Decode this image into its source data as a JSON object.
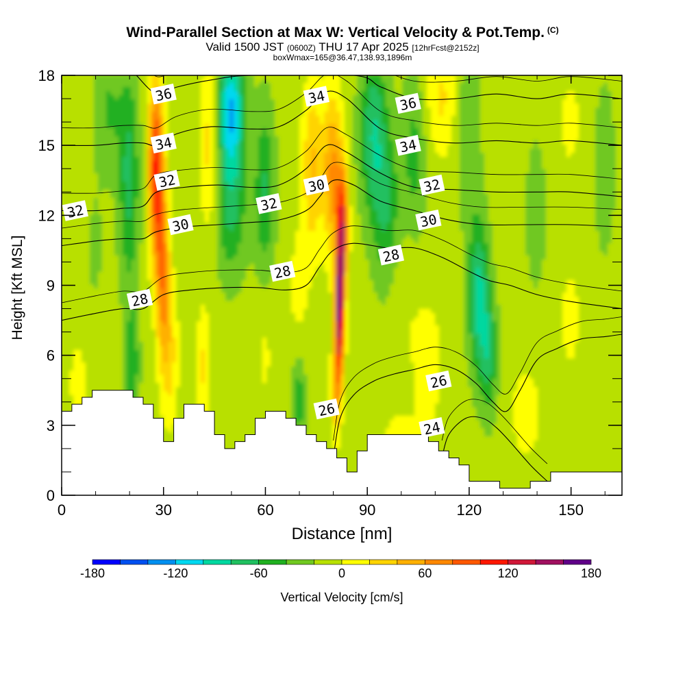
{
  "header": {
    "title": "Wind-Parallel Section at Max W: Vertical Velocity & Pot.Temp.",
    "title_mark": "(C)",
    "valid_a": "Valid 1500 JST",
    "valid_b": "(0600Z)",
    "valid_c": "THU 17 Apr 2025",
    "valid_d": "[12hrFcst@2152z]",
    "box": "boxWmax=165@36.47,138.93,1896m"
  },
  "chart_data": {
    "type": "heatmap",
    "xlabel": "Distance [nm]",
    "ylabel": "Height [Kft MSL]",
    "xlim": [
      0,
      165
    ],
    "ylim": [
      0,
      18
    ],
    "x_ticks": [
      0,
      30,
      60,
      90,
      120,
      150
    ],
    "y_ticks": [
      0,
      3,
      6,
      9,
      12,
      15,
      18
    ],
    "colorbar": {
      "label": "Vertical Velocity [cm/s]",
      "tick_values": [
        -180,
        -120,
        -60,
        0,
        60,
        120,
        180
      ],
      "min": -180,
      "max": 180,
      "step": 20,
      "colors": [
        "#0000ff",
        "#0050f0",
        "#0090f0",
        "#00d8f0",
        "#00d8a0",
        "#20c060",
        "#20b020",
        "#70c820",
        "#b8e000",
        "#ffff00",
        "#ffd400",
        "#ffb000",
        "#ff8800",
        "#ff5800",
        "#ff1800",
        "#d01838",
        "#a01060",
        "#600088"
      ]
    },
    "terrain_kft": [
      [
        0,
        3.6
      ],
      [
        3,
        3.6
      ],
      [
        3,
        3.9
      ],
      [
        6,
        3.9
      ],
      [
        6,
        4.2
      ],
      [
        9,
        4.2
      ],
      [
        9,
        4.5
      ],
      [
        21,
        4.5
      ],
      [
        21,
        4.2
      ],
      [
        24,
        4.2
      ],
      [
        24,
        3.9
      ],
      [
        27,
        3.9
      ],
      [
        27,
        3.3
      ],
      [
        30,
        3.3
      ],
      [
        30,
        2.3
      ],
      [
        33,
        2.3
      ],
      [
        33,
        3.3
      ],
      [
        36,
        3.3
      ],
      [
        36,
        3.9
      ],
      [
        42,
        3.9
      ],
      [
        42,
        3.6
      ],
      [
        45,
        3.6
      ],
      [
        45,
        2.6
      ],
      [
        48,
        2.6
      ],
      [
        48,
        2.0
      ],
      [
        51,
        2.0
      ],
      [
        51,
        2.3
      ],
      [
        54,
        2.3
      ],
      [
        54,
        2.6
      ],
      [
        57,
        2.6
      ],
      [
        57,
        3.3
      ],
      [
        60,
        3.3
      ],
      [
        60,
        3.6
      ],
      [
        66,
        3.6
      ],
      [
        66,
        3.3
      ],
      [
        69,
        3.3
      ],
      [
        69,
        3.0
      ],
      [
        72,
        3.0
      ],
      [
        72,
        2.6
      ],
      [
        75,
        2.6
      ],
      [
        75,
        2.3
      ],
      [
        78,
        2.3
      ],
      [
        78,
        2.0
      ],
      [
        81,
        2.0
      ],
      [
        81,
        1.6
      ],
      [
        84,
        1.6
      ],
      [
        84,
        1.0
      ],
      [
        87,
        1.0
      ],
      [
        87,
        1.9
      ],
      [
        90,
        1.9
      ],
      [
        90,
        2.6
      ],
      [
        108,
        2.6
      ],
      [
        108,
        2.3
      ],
      [
        111,
        2.3
      ],
      [
        111,
        1.9
      ],
      [
        114,
        1.9
      ],
      [
        114,
        1.6
      ],
      [
        117,
        1.6
      ],
      [
        117,
        1.3
      ],
      [
        120,
        1.3
      ],
      [
        120,
        0.6
      ],
      [
        129,
        0.6
      ],
      [
        129,
        0.3
      ],
      [
        138,
        0.3
      ],
      [
        138,
        0.6
      ],
      [
        144,
        0.6
      ],
      [
        144,
        1.0
      ],
      [
        165,
        1.0
      ]
    ],
    "theta_contours": [
      {
        "label": "24",
        "points": [
          [
            112,
            1.6
          ],
          [
            114,
            2.6
          ],
          [
            119,
            3.3
          ],
          [
            124,
            3.3
          ],
          [
            128,
            2.9
          ],
          [
            132,
            2.3
          ],
          [
            138,
            1.3
          ],
          [
            143,
            0.6
          ]
        ]
      },
      {
        "label": "26",
        "points": [
          [
            80,
            1.6
          ],
          [
            82,
            3.3
          ],
          [
            86,
            4.3
          ],
          [
            92,
            4.9
          ],
          [
            98,
            5.2
          ],
          [
            104,
            5.4
          ],
          [
            110,
            5.6
          ],
          [
            116,
            5.4
          ],
          [
            122,
            4.8
          ],
          [
            127,
            4.0
          ],
          [
            131,
            3.6
          ],
          [
            135,
            4.5
          ],
          [
            140,
            5.8
          ],
          [
            146,
            6.3
          ],
          [
            153,
            6.7
          ],
          [
            160,
            6.8
          ],
          [
            165,
            6.9
          ]
        ]
      },
      {
        "label": "28",
        "points": [
          [
            0,
            7.5
          ],
          [
            10,
            7.8
          ],
          [
            18,
            8.0
          ],
          [
            24,
            8.0
          ],
          [
            30,
            8.6
          ],
          [
            38,
            8.8
          ],
          [
            48,
            8.9
          ],
          [
            58,
            8.9
          ],
          [
            66,
            8.8
          ],
          [
            72,
            9.0
          ],
          [
            76,
            9.8
          ],
          [
            80,
            10.5
          ],
          [
            86,
            10.8
          ],
          [
            96,
            10.6
          ],
          [
            104,
            10.6
          ],
          [
            112,
            10.2
          ],
          [
            120,
            9.6
          ],
          [
            126,
            9.2
          ],
          [
            132,
            9.0
          ],
          [
            140,
            8.6
          ],
          [
            150,
            8.3
          ],
          [
            165,
            8.0
          ]
        ]
      },
      {
        "label": "30",
        "points": [
          [
            0,
            10.7
          ],
          [
            10,
            10.9
          ],
          [
            18,
            11.0
          ],
          [
            24,
            11.0
          ],
          [
            28,
            11.3
          ],
          [
            36,
            11.5
          ],
          [
            46,
            11.6
          ],
          [
            56,
            11.7
          ],
          [
            64,
            11.8
          ],
          [
            72,
            12.2
          ],
          [
            76,
            12.8
          ],
          [
            80,
            13.5
          ],
          [
            86,
            13.3
          ],
          [
            94,
            12.6
          ],
          [
            104,
            12.2
          ],
          [
            114,
            11.8
          ],
          [
            124,
            11.6
          ],
          [
            136,
            11.6
          ],
          [
            150,
            11.6
          ],
          [
            165,
            11.5
          ]
        ]
      },
      {
        "label": "32",
        "points": [
          [
            0,
            12.2
          ],
          [
            10,
            12.2
          ],
          [
            18,
            12.3
          ],
          [
            24,
            12.4
          ],
          [
            28,
            13.0
          ],
          [
            36,
            13.2
          ],
          [
            46,
            13.3
          ],
          [
            56,
            13.2
          ],
          [
            64,
            13.3
          ],
          [
            72,
            14.0
          ],
          [
            78,
            15.0
          ],
          [
            84,
            14.7
          ],
          [
            94,
            13.8
          ],
          [
            104,
            13.2
          ],
          [
            116,
            13.1
          ],
          [
            128,
            13.0
          ],
          [
            140,
            13.0
          ],
          [
            150,
            13.0
          ],
          [
            165,
            12.8
          ]
        ]
      },
      {
        "label": "34",
        "points": [
          [
            0,
            15.0
          ],
          [
            10,
            15.0
          ],
          [
            18,
            15.1
          ],
          [
            24,
            15.1
          ],
          [
            28,
            15.0
          ],
          [
            34,
            15.5
          ],
          [
            44,
            15.8
          ],
          [
            56,
            15.7
          ],
          [
            64,
            15.8
          ],
          [
            72,
            16.5
          ],
          [
            78,
            17.3
          ],
          [
            84,
            17.0
          ],
          [
            94,
            15.7
          ],
          [
            104,
            15.3
          ],
          [
            116,
            15.1
          ],
          [
            128,
            15.2
          ],
          [
            140,
            15.1
          ],
          [
            150,
            15.2
          ],
          [
            165,
            15.0
          ]
        ]
      },
      {
        "label": "36",
        "points": [
          [
            22,
            18.0
          ],
          [
            28,
            17.2
          ],
          [
            34,
            17.5
          ],
          [
            44,
            17.8
          ],
          [
            56,
            18.0
          ],
          [
            86,
            18.0
          ],
          [
            94,
            17.5
          ],
          [
            104,
            17.0
          ],
          [
            116,
            17.0
          ],
          [
            128,
            17.2
          ],
          [
            140,
            17.0
          ],
          [
            150,
            17.2
          ],
          [
            165,
            17.0
          ]
        ]
      }
    ],
    "contour_labels": [
      {
        "text": "24",
        "x": 109,
        "y": 2.9
      },
      {
        "text": "26",
        "x": 78,
        "y": 3.7
      },
      {
        "text": "26",
        "x": 111,
        "y": 4.9
      },
      {
        "text": "28",
        "x": 23,
        "y": 8.4
      },
      {
        "text": "28",
        "x": 65,
        "y": 9.6
      },
      {
        "text": "28",
        "x": 97,
        "y": 10.3
      },
      {
        "text": "30",
        "x": 35,
        "y": 11.6
      },
      {
        "text": "30",
        "x": 75,
        "y": 13.3
      },
      {
        "text": "30",
        "x": 108,
        "y": 11.8
      },
      {
        "text": "32",
        "x": 4,
        "y": 12.2
      },
      {
        "text": "32",
        "x": 31,
        "y": 13.5
      },
      {
        "text": "32",
        "x": 61,
        "y": 12.5
      },
      {
        "text": "32",
        "x": 109,
        "y": 13.3
      },
      {
        "text": "34",
        "x": 30,
        "y": 15.1
      },
      {
        "text": "34",
        "x": 75,
        "y": 17.1
      },
      {
        "text": "34",
        "x": 102,
        "y": 15.0
      },
      {
        "text": "36",
        "x": 30,
        "y": 17.2
      },
      {
        "text": "36",
        "x": 102,
        "y": 16.8
      }
    ]
  }
}
